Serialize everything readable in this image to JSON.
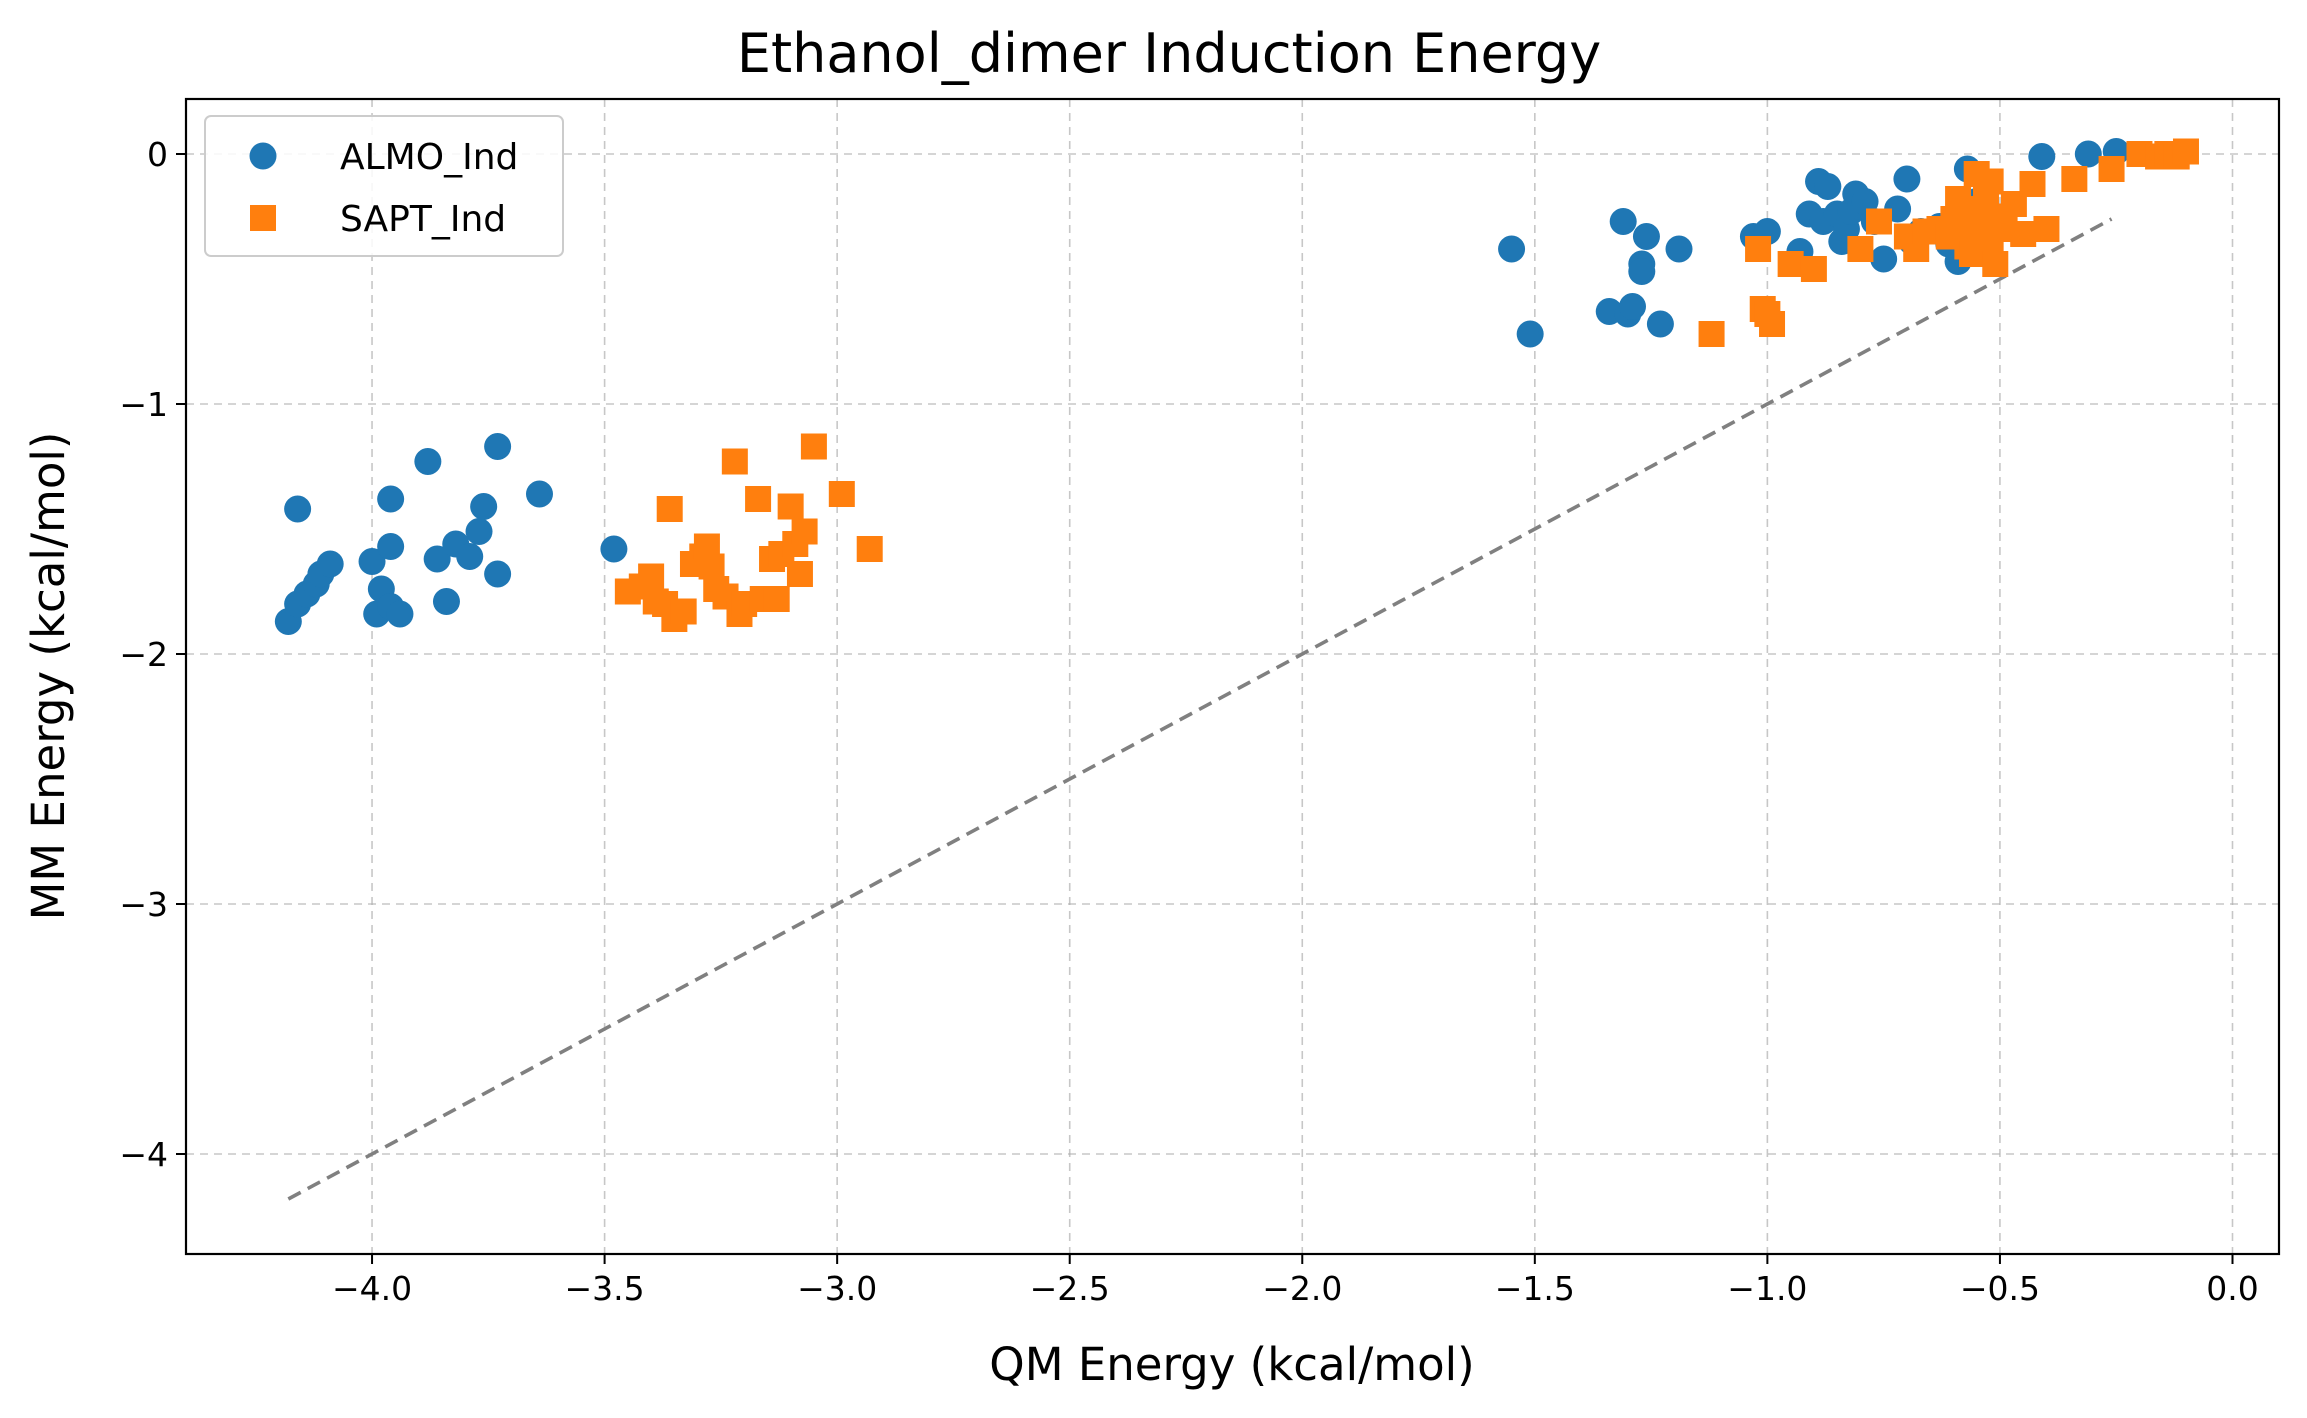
{
  "chart_data": {
    "type": "scatter",
    "title": "Ethanol_dimer Induction Energy",
    "xlabel": "QM Energy (kcal/mol)",
    "ylabel": "MM Energy (kcal/mol)",
    "xlim": [
      -4.4,
      0.1
    ],
    "ylim": [
      -4.4,
      0.22
    ],
    "x_ticks": [
      -4.0,
      -3.5,
      -3.0,
      -2.5,
      -2.0,
      -1.5,
      -1.0,
      -0.5,
      0.0
    ],
    "x_tick_labels": [
      "−4.0",
      "−3.5",
      "−3.0",
      "−2.5",
      "−2.0",
      "−1.5",
      "−1.0",
      "−0.5",
      "0.0"
    ],
    "y_ticks": [
      0,
      -1,
      -2,
      -3,
      -4
    ],
    "y_tick_labels": [
      "0",
      "−1",
      "−2",
      "−3",
      "−4"
    ],
    "grid": true,
    "legend_position": "top-left",
    "reference_line": {
      "style": "dashed",
      "color": "#808080",
      "from": [
        -4.18,
        -4.18
      ],
      "to": [
        -0.26,
        -0.26
      ]
    },
    "series": [
      {
        "name": "ALMO_Ind",
        "marker": "circle",
        "color": "#1f77b4",
        "points": [
          [
            -4.18,
            -1.87
          ],
          [
            -4.16,
            -1.8
          ],
          [
            -4.14,
            -1.76
          ],
          [
            -4.12,
            -1.72
          ],
          [
            -4.11,
            -1.68
          ],
          [
            -4.09,
            -1.64
          ],
          [
            -4.16,
            -1.42
          ],
          [
            -4.0,
            -1.63
          ],
          [
            -3.99,
            -1.84
          ],
          [
            -3.98,
            -1.74
          ],
          [
            -3.96,
            -1.81
          ],
          [
            -3.94,
            -1.84
          ],
          [
            -3.96,
            -1.38
          ],
          [
            -3.96,
            -1.57
          ],
          [
            -3.88,
            -1.23
          ],
          [
            -3.86,
            -1.62
          ],
          [
            -3.84,
            -1.79
          ],
          [
            -3.82,
            -1.56
          ],
          [
            -3.79,
            -1.61
          ],
          [
            -3.77,
            -1.51
          ],
          [
            -3.76,
            -1.41
          ],
          [
            -3.73,
            -1.17
          ],
          [
            -3.73,
            -1.68
          ],
          [
            -3.64,
            -1.36
          ],
          [
            -3.48,
            -1.58
          ],
          [
            -1.55,
            -0.38
          ],
          [
            -1.51,
            -0.72
          ],
          [
            -1.34,
            -0.63
          ],
          [
            -1.31,
            -0.27
          ],
          [
            -1.3,
            -0.64
          ],
          [
            -1.29,
            -0.61
          ],
          [
            -1.27,
            -0.44
          ],
          [
            -1.27,
            -0.47
          ],
          [
            -1.26,
            -0.33
          ],
          [
            -1.23,
            -0.68
          ],
          [
            -1.19,
            -0.38
          ],
          [
            -1.03,
            -0.33
          ],
          [
            -1.0,
            -0.31
          ],
          [
            -0.93,
            -0.39
          ],
          [
            -0.91,
            -0.24
          ],
          [
            -0.89,
            -0.11
          ],
          [
            -0.88,
            -0.27
          ],
          [
            -0.87,
            -0.13
          ],
          [
            -0.85,
            -0.24
          ],
          [
            -0.84,
            -0.35
          ],
          [
            -0.83,
            -0.3
          ],
          [
            -0.82,
            -0.23
          ],
          [
            -0.81,
            -0.16
          ],
          [
            -0.8,
            -0.21
          ],
          [
            -0.79,
            -0.19
          ],
          [
            -0.77,
            -0.27
          ],
          [
            -0.75,
            -0.42
          ],
          [
            -0.72,
            -0.22
          ],
          [
            -0.7,
            -0.1
          ],
          [
            -0.69,
            -0.35
          ],
          [
            -0.67,
            -0.31
          ],
          [
            -0.63,
            -0.29
          ],
          [
            -0.61,
            -0.36
          ],
          [
            -0.59,
            -0.43
          ],
          [
            -0.57,
            -0.06
          ],
          [
            -0.55,
            -0.19
          ],
          [
            -0.53,
            -0.35
          ],
          [
            -0.51,
            -0.27
          ],
          [
            -0.41,
            -0.01
          ],
          [
            -0.31,
            0.0
          ],
          [
            -0.25,
            0.01
          ]
        ]
      },
      {
        "name": "SAPT_Ind",
        "marker": "square",
        "color": "#ff7f0e",
        "points": [
          [
            -3.45,
            -1.75
          ],
          [
            -3.42,
            -1.73
          ],
          [
            -3.4,
            -1.69
          ],
          [
            -3.39,
            -1.79
          ],
          [
            -3.37,
            -1.8
          ],
          [
            -3.36,
            -1.42
          ],
          [
            -3.35,
            -1.86
          ],
          [
            -3.33,
            -1.83
          ],
          [
            -3.31,
            -1.64
          ],
          [
            -3.29,
            -1.61
          ],
          [
            -3.28,
            -1.57
          ],
          [
            -3.27,
            -1.65
          ],
          [
            -3.26,
            -1.74
          ],
          [
            -3.24,
            -1.77
          ],
          [
            -3.22,
            -1.23
          ],
          [
            -3.21,
            -1.84
          ],
          [
            -3.2,
            -1.8
          ],
          [
            -3.17,
            -1.38
          ],
          [
            -3.16,
            -1.78
          ],
          [
            -3.14,
            -1.62
          ],
          [
            -3.13,
            -1.78
          ],
          [
            -3.12,
            -1.6
          ],
          [
            -3.1,
            -1.41
          ],
          [
            -3.09,
            -1.56
          ],
          [
            -3.08,
            -1.68
          ],
          [
            -3.07,
            -1.51
          ],
          [
            -3.05,
            -1.17
          ],
          [
            -2.99,
            -1.36
          ],
          [
            -2.93,
            -1.58
          ],
          [
            -1.12,
            -0.72
          ],
          [
            -1.02,
            -0.38
          ],
          [
            -1.01,
            -0.62
          ],
          [
            -1.0,
            -0.64
          ],
          [
            -0.99,
            -0.68
          ],
          [
            -0.95,
            -0.44
          ],
          [
            -0.9,
            -0.46
          ],
          [
            -0.8,
            -0.38
          ],
          [
            -0.76,
            -0.27
          ],
          [
            -0.7,
            -0.33
          ],
          [
            -0.68,
            -0.38
          ],
          [
            -0.66,
            -0.31
          ],
          [
            -0.63,
            -0.3
          ],
          [
            -0.61,
            -0.33
          ],
          [
            -0.6,
            -0.26
          ],
          [
            -0.59,
            -0.18
          ],
          [
            -0.58,
            -0.3
          ],
          [
            -0.57,
            -0.37
          ],
          [
            -0.56,
            -0.4
          ],
          [
            -0.55,
            -0.08
          ],
          [
            -0.55,
            -0.22
          ],
          [
            -0.54,
            -0.28
          ],
          [
            -0.53,
            -0.15
          ],
          [
            -0.52,
            -0.11
          ],
          [
            -0.52,
            -0.35
          ],
          [
            -0.51,
            -0.44
          ],
          [
            -0.5,
            -0.25
          ],
          [
            -0.49,
            -0.3
          ],
          [
            -0.47,
            -0.2
          ],
          [
            -0.45,
            -0.32
          ],
          [
            -0.43,
            -0.12
          ],
          [
            -0.4,
            -0.3
          ],
          [
            -0.34,
            -0.1
          ],
          [
            -0.26,
            -0.06
          ],
          [
            -0.2,
            0.0
          ],
          [
            -0.16,
            -0.01
          ],
          [
            -0.14,
            0.0
          ],
          [
            -0.12,
            -0.01
          ],
          [
            -0.1,
            0.01
          ]
        ]
      }
    ]
  }
}
